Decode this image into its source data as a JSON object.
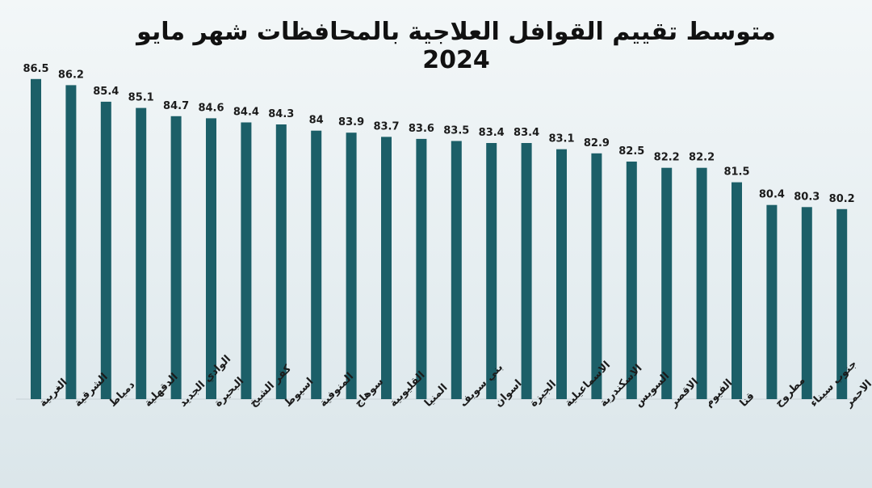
{
  "chart_data": {
    "type": "bar",
    "title": "متوسط تقييم القوافل العلاجية بالمحافظات شهر مايو 2024",
    "xlabel": "",
    "ylabel": "",
    "ylim": [
      71,
      87
    ],
    "grid": false,
    "categories": [
      "الغربية",
      "الشرقية",
      "دمياط",
      "الدقهلية",
      "الوادي الجديد",
      "البحيرة",
      "كفر الشيخ",
      "اسيوط",
      "المنوفية",
      "سوهاج",
      "القليوبية",
      "المنيا",
      "بني سويف",
      "اسوان",
      "الجيزة",
      "الاسماعيلية",
      "الاسكندرية",
      "السويس",
      "الاقصر",
      "الفيوم",
      "قنا",
      "مطروح",
      "جنوب سيناء",
      "البحر الاحمر"
    ],
    "values": [
      86.5,
      86.2,
      85.4,
      85.1,
      84.7,
      84.6,
      84.4,
      84.3,
      84,
      83.9,
      83.7,
      83.6,
      83.5,
      83.4,
      83.4,
      83.1,
      82.9,
      82.5,
      82.2,
      82.2,
      81.5,
      80.4,
      80.3,
      80.2
    ],
    "bar_color": "#1c5f68"
  }
}
